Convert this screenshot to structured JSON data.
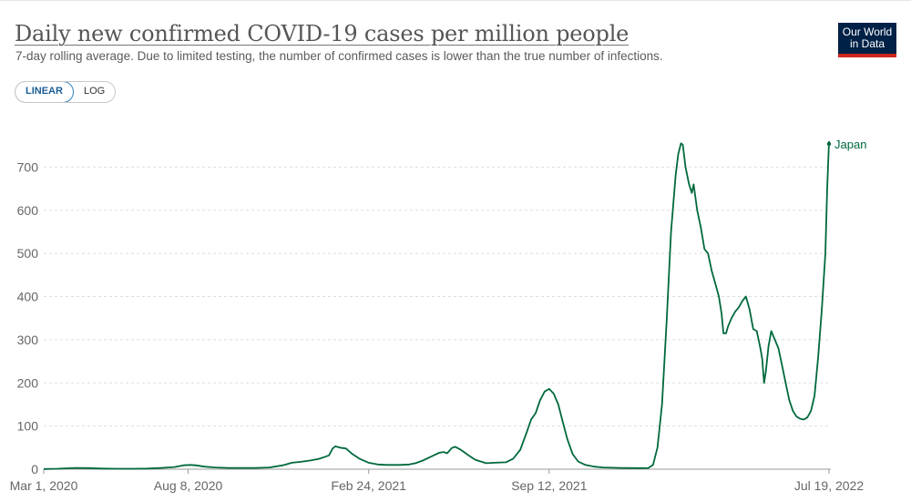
{
  "header": {
    "title": "Daily new confirmed COVID-19 cases per million people",
    "subtitle": "7-day rolling average. Due to limited testing, the number of confirmed cases is lower than the true number of infections.",
    "logo_line1": "Our World",
    "logo_line2": "in Data"
  },
  "controls": {
    "linear_label": "LINEAR",
    "log_label": "LOG"
  },
  "colors": {
    "line": "#00693c",
    "grid": "#dddddd",
    "axis": "#666666",
    "logo_bg": "#002147",
    "logo_stripe": "#ce261e"
  },
  "chart_data": {
    "type": "line",
    "title": "Daily new confirmed COVID-19 cases per million people",
    "xlabel": "",
    "ylabel": "",
    "ylim": [
      0,
      760
    ],
    "yticks": [
      0,
      100,
      200,
      300,
      400,
      500,
      600,
      700
    ],
    "xlim": [
      0,
      870
    ],
    "xtick_labels": [
      "Mar 1, 2020",
      "Aug 8, 2020",
      "Feb 24, 2021",
      "Sep 12, 2021",
      "Jul 19, 2022"
    ],
    "xtick_days": [
      0,
      160,
      360,
      560,
      870
    ],
    "grid": true,
    "series": [
      {
        "name": "Japan",
        "values": [
          [
            0,
            0.5
          ],
          [
            15,
            1
          ],
          [
            35,
            3
          ],
          [
            50,
            2.5
          ],
          [
            65,
            1.5
          ],
          [
            80,
            1
          ],
          [
            100,
            1
          ],
          [
            115,
            1.5
          ],
          [
            130,
            3
          ],
          [
            145,
            5
          ],
          [
            155,
            9
          ],
          [
            162,
            10
          ],
          [
            168,
            9
          ],
          [
            178,
            6
          ],
          [
            190,
            4
          ],
          [
            205,
            3
          ],
          [
            220,
            3
          ],
          [
            235,
            3
          ],
          [
            250,
            4
          ],
          [
            265,
            9
          ],
          [
            275,
            15
          ],
          [
            285,
            17
          ],
          [
            295,
            20
          ],
          [
            305,
            24
          ],
          [
            312,
            29
          ],
          [
            316,
            32
          ],
          [
            320,
            48
          ],
          [
            323,
            53
          ],
          [
            328,
            50
          ],
          [
            335,
            48
          ],
          [
            342,
            35
          ],
          [
            350,
            24
          ],
          [
            360,
            15
          ],
          [
            370,
            11
          ],
          [
            380,
            10
          ],
          [
            395,
            10
          ],
          [
            405,
            11
          ],
          [
            412,
            14
          ],
          [
            420,
            20
          ],
          [
            430,
            30
          ],
          [
            438,
            38
          ],
          [
            443,
            40
          ],
          [
            447,
            37
          ],
          [
            452,
            49
          ],
          [
            456,
            52
          ],
          [
            462,
            45
          ],
          [
            470,
            33
          ],
          [
            478,
            22
          ],
          [
            490,
            14
          ],
          [
            500,
            15
          ],
          [
            512,
            16
          ],
          [
            520,
            24
          ],
          [
            528,
            45
          ],
          [
            535,
            85
          ],
          [
            540,
            115
          ],
          [
            545,
            130
          ],
          [
            550,
            160
          ],
          [
            555,
            180
          ],
          [
            560,
            186
          ],
          [
            565,
            175
          ],
          [
            570,
            150
          ],
          [
            575,
            110
          ],
          [
            580,
            70
          ],
          [
            586,
            35
          ],
          [
            592,
            18
          ],
          [
            600,
            10
          ],
          [
            610,
            6
          ],
          [
            620,
            4
          ],
          [
            640,
            3
          ],
          [
            660,
            2.5
          ],
          [
            670,
            3
          ],
          [
            675,
            10
          ],
          [
            680,
            50
          ],
          [
            685,
            150
          ],
          [
            690,
            340
          ],
          [
            695,
            550
          ],
          [
            700,
            680
          ],
          [
            703,
            730
          ],
          [
            706,
            755
          ],
          [
            708,
            752
          ],
          [
            711,
            700
          ],
          [
            715,
            660
          ],
          [
            718,
            640
          ],
          [
            720,
            660
          ],
          [
            724,
            600
          ],
          [
            728,
            560
          ],
          [
            732,
            510
          ],
          [
            736,
            500
          ],
          [
            740,
            460
          ],
          [
            744,
            430
          ],
          [
            748,
            400
          ],
          [
            751,
            360
          ],
          [
            753,
            315
          ],
          [
            756,
            315
          ],
          [
            758,
            330
          ],
          [
            762,
            350
          ],
          [
            766,
            365
          ],
          [
            770,
            375
          ],
          [
            774,
            390
          ],
          [
            778,
            400
          ],
          [
            782,
            370
          ],
          [
            786,
            325
          ],
          [
            790,
            320
          ],
          [
            794,
            280
          ],
          [
            796,
            255
          ],
          [
            798,
            200
          ],
          [
            800,
            225
          ],
          [
            803,
            285
          ],
          [
            806,
            320
          ],
          [
            810,
            300
          ],
          [
            814,
            280
          ],
          [
            818,
            240
          ],
          [
            822,
            200
          ],
          [
            826,
            160
          ],
          [
            830,
            135
          ],
          [
            834,
            122
          ],
          [
            838,
            117
          ],
          [
            842,
            115
          ],
          [
            846,
            120
          ],
          [
            850,
            135
          ],
          [
            854,
            170
          ],
          [
            858,
            260
          ],
          [
            862,
            370
          ],
          [
            866,
            500
          ],
          [
            868,
            650
          ],
          [
            870,
            760
          ]
        ]
      }
    ]
  }
}
